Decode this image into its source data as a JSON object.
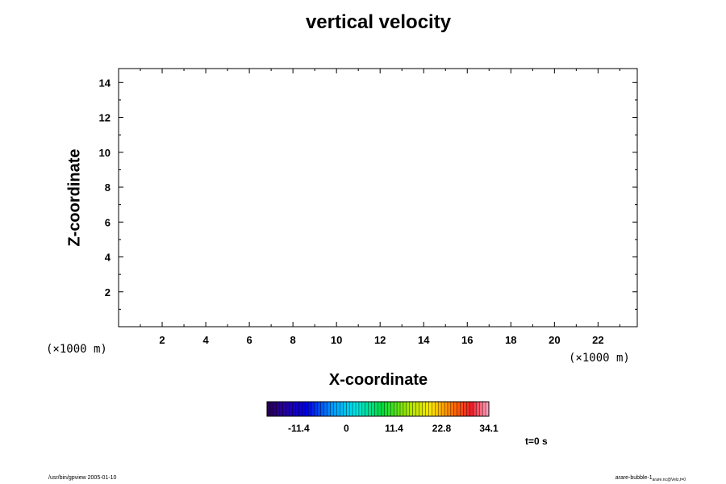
{
  "chart_data": {
    "type": "heatmap",
    "title": "vertical velocity",
    "xlabel": "X-coordinate",
    "ylabel": "Z-coordinate",
    "x_unit": "(×1000 m)",
    "y_unit": "(×1000 m)",
    "xlim": [
      0,
      23.8
    ],
    "ylim": [
      0,
      14.8
    ],
    "x_ticks": [
      2,
      4,
      6,
      8,
      10,
      12,
      14,
      16,
      18,
      20,
      22
    ],
    "y_ticks": [
      2,
      4,
      6,
      8,
      10,
      12,
      14
    ],
    "values": [],
    "colorbar": {
      "min": -19,
      "max": 34.1,
      "ticks": [
        "-11.4",
        "0",
        "11.4",
        "22.8",
        "34.1"
      ],
      "tick_values": [
        -11.4,
        0,
        11.4,
        22.8,
        34.1
      ]
    },
    "grid": false
  },
  "annotations": {
    "time": "t=0 s",
    "footer_left": "/usr/bin/gpview 2005-01-10",
    "footer_right_main": "arare-bubble-1",
    "footer_right_sub": "arare.nc@Velz,t=0"
  }
}
